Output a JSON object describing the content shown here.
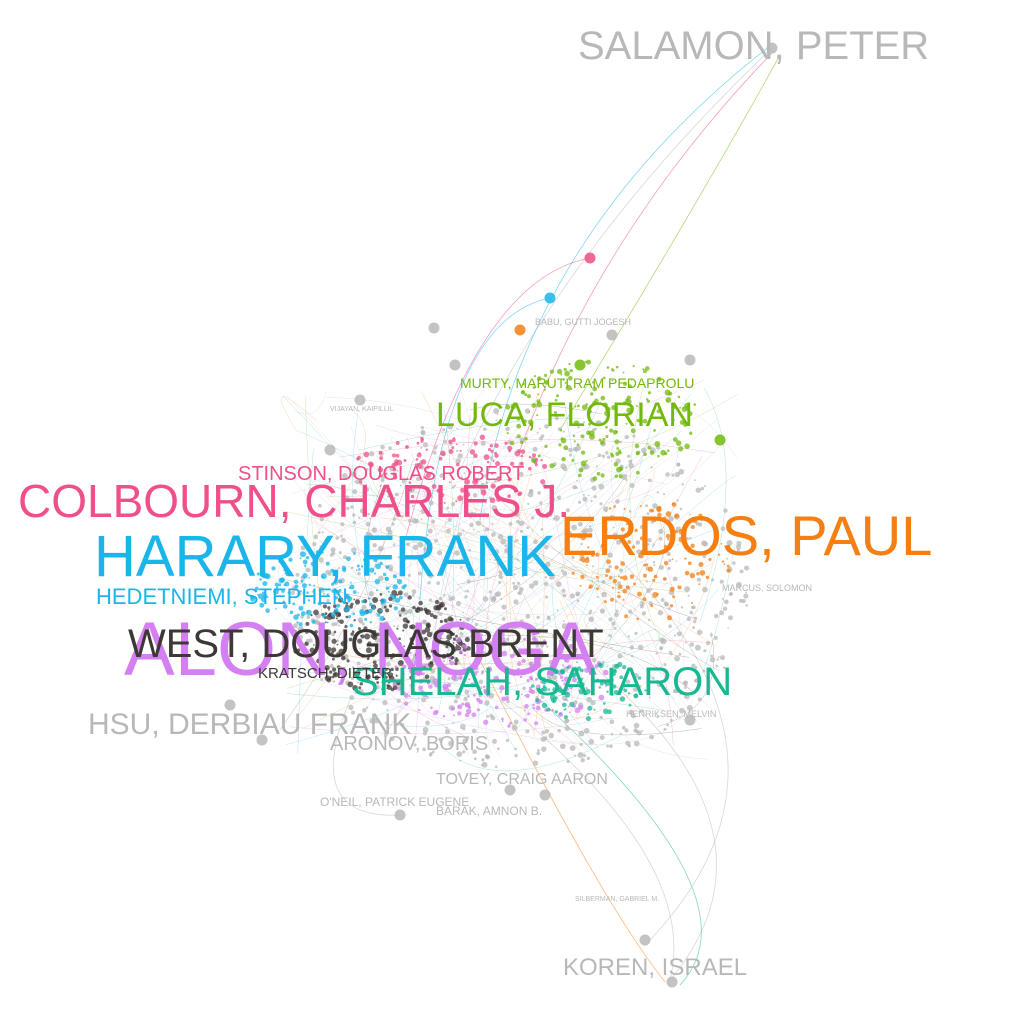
{
  "colors": {
    "gray": "#b8b8b8",
    "dark": "#3d3836",
    "pink": "#ef4f8a",
    "cyan": "#1ab6ea",
    "orange": "#f57f13",
    "green": "#73b90c",
    "purple": "#d47ff2",
    "teal": "#17b892"
  },
  "labels": [
    {
      "text": "SALAMON, PETER",
      "group": "gray",
      "size": 40
    },
    {
      "text": "KOREN, ISRAEL",
      "group": "gray",
      "size": 24
    },
    {
      "text": "HSU, DERBIAU FRANK",
      "group": "gray",
      "size": 30
    },
    {
      "text": "COLBOURN, CHARLES J.",
      "group": "pink",
      "size": 46
    },
    {
      "text": "HARARY, FRANK",
      "group": "cyan",
      "size": 58
    },
    {
      "text": "HEDETNIEMI, STEPHEN",
      "group": "cyan",
      "size": 22
    },
    {
      "text": "LUCA, FLORIAN",
      "group": "green",
      "size": 34
    },
    {
      "text": "MURTY, MARUTI RAM PEDAPROLU",
      "group": "green",
      "size": 14
    },
    {
      "text": "STINSON, DOUGLAS ROBERT",
      "group": "pink",
      "size": 20
    },
    {
      "text": "ALON, NOGA",
      "group": "purple",
      "size": 76
    },
    {
      "text": "ERDOS, PAUL",
      "group": "orange",
      "size": 56
    },
    {
      "text": "SHELAH, SAHARON",
      "group": "teal",
      "size": 40
    },
    {
      "text": "WEST, DOUGLAS BRENT",
      "group": "dark",
      "size": 40
    },
    {
      "text": "KRATSCH, DIETER",
      "group": "dark",
      "size": 15
    },
    {
      "text": "ARONOV, BORIS",
      "group": "gray",
      "size": 20
    },
    {
      "text": "TOVEY, CRAIG AARON",
      "group": "gray",
      "size": 16
    },
    {
      "text": "O'NEIL, PATRICK EUGENE",
      "group": "gray",
      "size": 12
    },
    {
      "text": "BARAK, AMNON B.",
      "group": "gray",
      "size": 12
    },
    {
      "text": "BABU, GUTTI JOGESH",
      "group": "gray",
      "size": 9
    },
    {
      "text": "MARCUS, SOLOMON",
      "group": "gray",
      "size": 9
    },
    {
      "text": "HENRIKSEN, MELVIN",
      "group": "gray",
      "size": 9
    },
    {
      "text": "SILBERMAN, GABRIEL M.",
      "group": "gray",
      "size": 7
    },
    {
      "text": "VIJAYAN, KAIPILLIL",
      "group": "gray",
      "size": 7
    }
  ]
}
